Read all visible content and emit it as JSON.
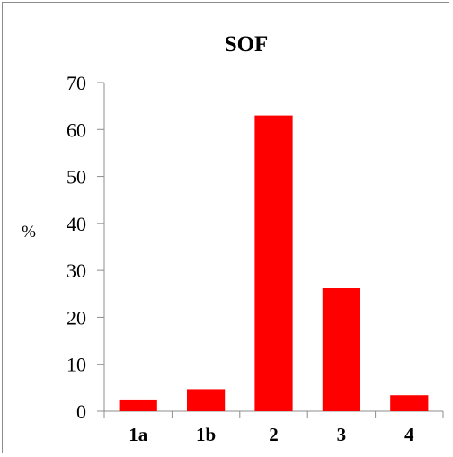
{
  "chart_data": {
    "type": "bar",
    "title": "SOF",
    "xlabel": "",
    "ylabel": "%",
    "categories": [
      "1a",
      "1b",
      "2",
      "3",
      "4"
    ],
    "values": [
      2.5,
      4.7,
      63,
      26.2,
      3.4
    ],
    "ylim": [
      0,
      70
    ],
    "yticks": [
      0,
      10,
      20,
      30,
      40,
      50,
      60,
      70
    ],
    "bar_color": "#ff0000",
    "grid": false,
    "legend": "none"
  }
}
